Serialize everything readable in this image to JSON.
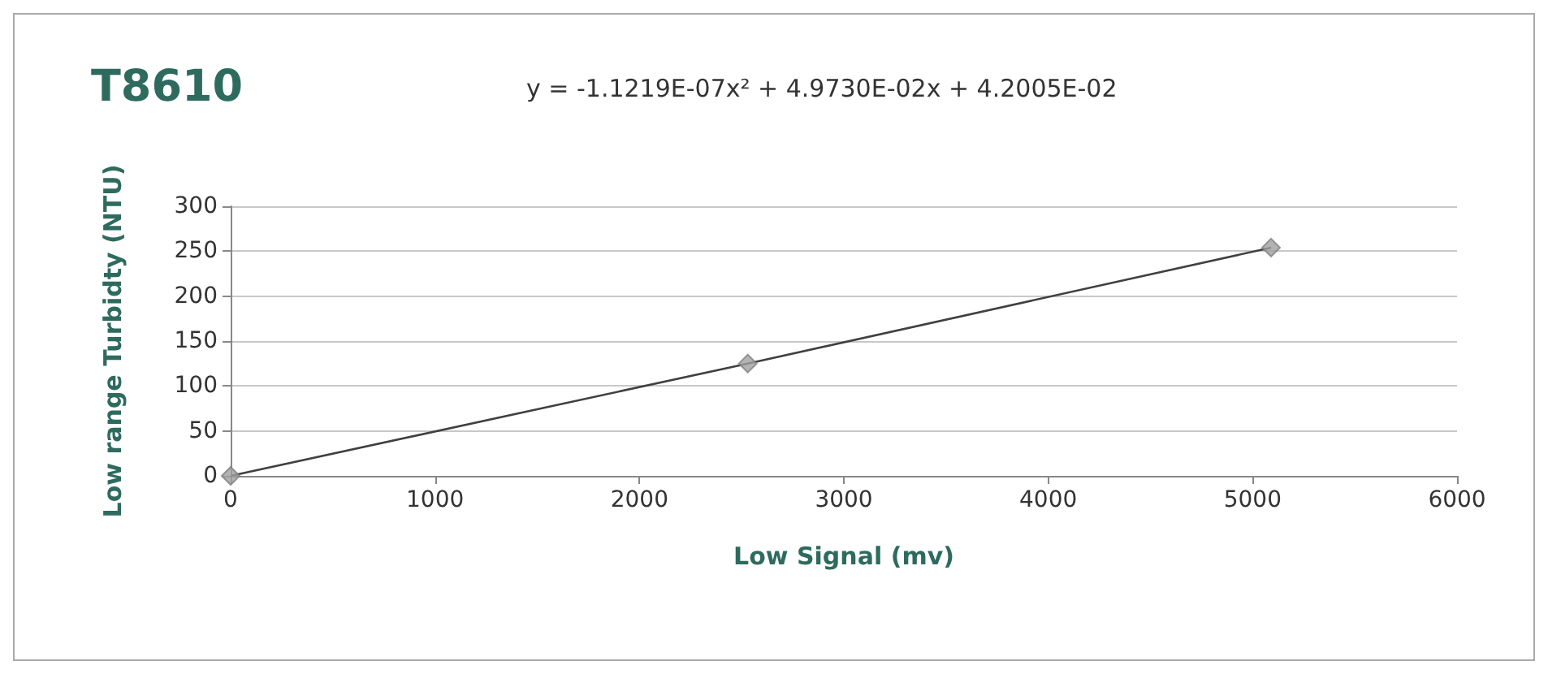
{
  "chart_data": {
    "type": "scatter",
    "title": "T8610",
    "xlabel": "Low Signal (mv)",
    "ylabel": "Low range Turbidty (NTU)",
    "annotations": [
      "y = -1.1219E-07x² + 4.9730E-02x + 4.2005E-02"
    ],
    "series": [
      {
        "color": "#a0a0a0",
        "marker": "diamond",
        "x": [
          0,
          2530,
          5090
        ],
        "values": [
          0,
          125,
          254
        ]
      },
      {
        "type": "line",
        "color": "#404040",
        "marker": "none",
        "x": [
          0,
          2530,
          5090
        ],
        "values": [
          0,
          125,
          254
        ]
      }
    ],
    "xlim": [
      0,
      6000
    ],
    "xticks": [
      0,
      1000,
      2000,
      3000,
      4000,
      5000,
      6000
    ],
    "ylim": [
      0,
      300
    ],
    "yticks": [
      0,
      50,
      100,
      150,
      200,
      250,
      300
    ],
    "grid": "y"
  }
}
